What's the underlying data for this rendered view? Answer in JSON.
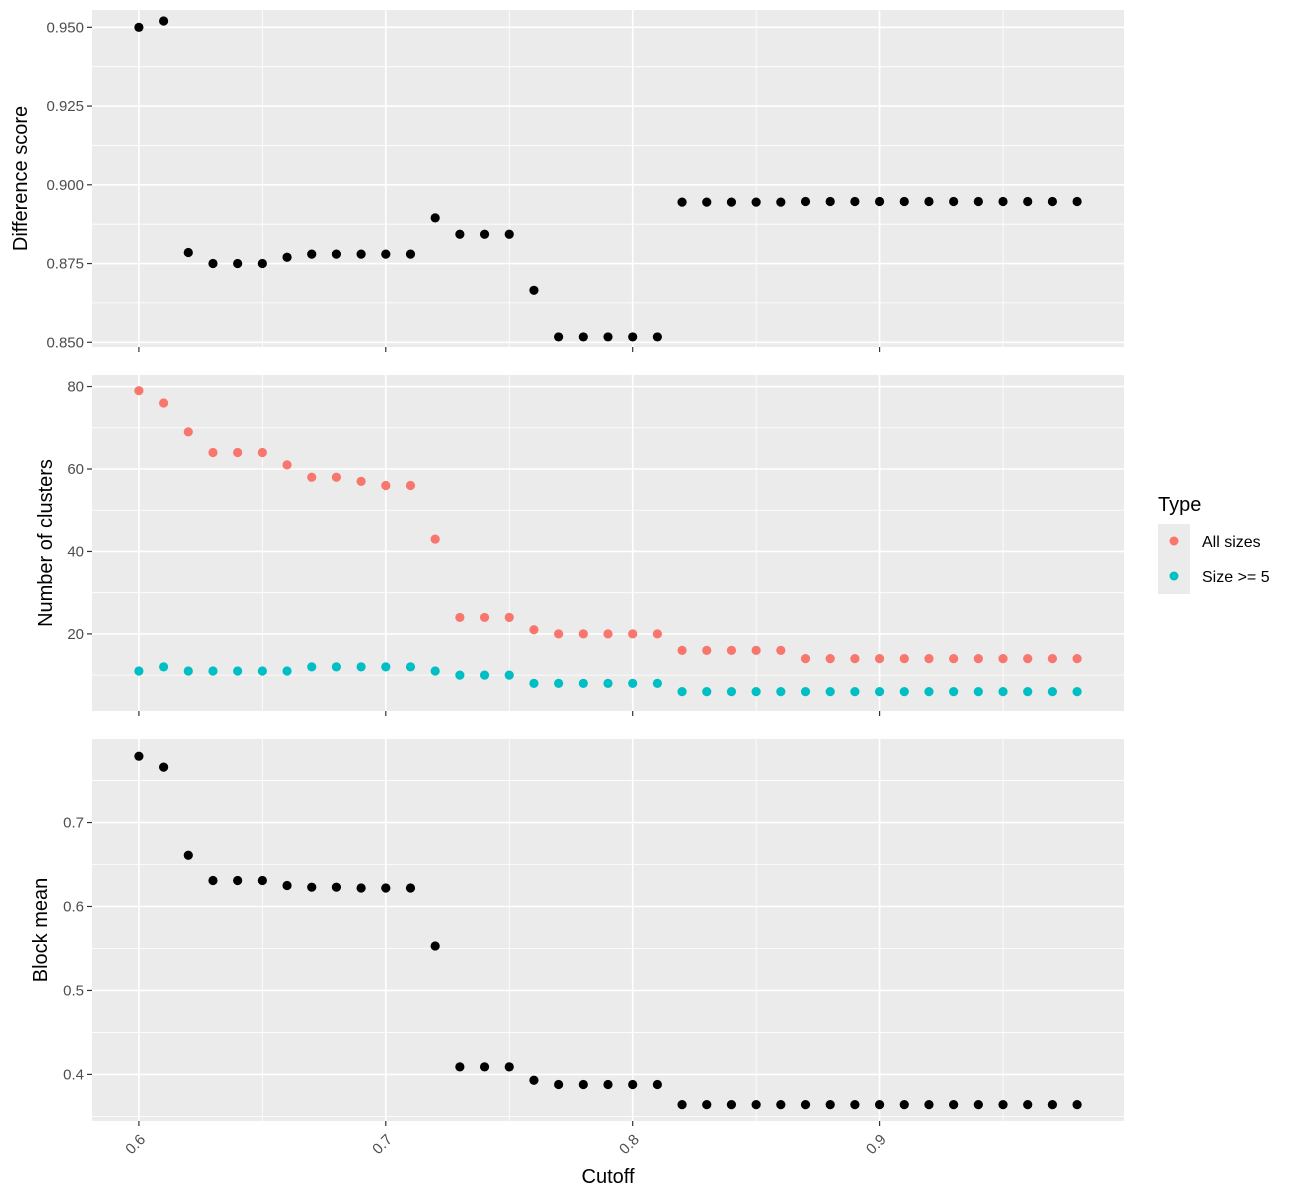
{
  "chart_data": [
    {
      "type": "scatter",
      "ylabel": "Difference score",
      "xlabel": "",
      "xlim": [
        0.581,
        0.999
      ],
      "ylim": [
        0.8485,
        0.9555
      ],
      "x_ticks": [
        0.6,
        0.7,
        0.8,
        0.9
      ],
      "x_tick_labels": [
        "",
        "",
        "",
        ""
      ],
      "y_ticks": [
        0.85,
        0.875,
        0.9,
        0.925,
        0.95
      ],
      "y_tick_labels": [
        "0.850",
        "0.875",
        "0.900",
        "0.925",
        "0.950"
      ],
      "x": [
        0.6,
        0.61,
        0.62,
        0.63,
        0.64,
        0.65,
        0.66,
        0.67,
        0.68,
        0.69,
        0.7,
        0.71,
        0.72,
        0.73,
        0.74,
        0.75,
        0.76,
        0.77,
        0.78,
        0.79,
        0.8,
        0.81,
        0.82,
        0.83,
        0.84,
        0.85,
        0.86,
        0.87,
        0.88,
        0.89,
        0.9,
        0.91,
        0.92,
        0.93,
        0.94,
        0.95,
        0.96,
        0.97,
        0.98
      ],
      "series": [
        {
          "color": "#000000",
          "values": [
            0.95,
            0.952,
            0.8785,
            0.875,
            0.875,
            0.875,
            0.877,
            0.878,
            0.878,
            0.878,
            0.878,
            0.878,
            0.8895,
            0.8843,
            0.8843,
            0.8843,
            0.8665,
            0.8517,
            0.8517,
            0.8517,
            0.8517,
            0.8517,
            0.8945,
            0.8945,
            0.8945,
            0.8945,
            0.8945,
            0.8947,
            0.8947,
            0.8947,
            0.8947,
            0.8947,
            0.8947,
            0.8947,
            0.8947,
            0.8947,
            0.8947,
            0.8947,
            0.8947
          ]
        }
      ],
      "grid": true
    },
    {
      "type": "scatter",
      "ylabel": "Number of clusters",
      "xlabel": "",
      "xlim": [
        0.581,
        0.999
      ],
      "ylim": [
        1.3,
        82.8
      ],
      "x_ticks": [
        0.6,
        0.7,
        0.8,
        0.9
      ],
      "x_tick_labels": [
        "",
        "",
        "",
        ""
      ],
      "y_ticks": [
        20,
        40,
        60,
        80
      ],
      "y_tick_labels": [
        "20",
        "40",
        "60",
        "80"
      ],
      "x": [
        0.6,
        0.61,
        0.62,
        0.63,
        0.64,
        0.65,
        0.66,
        0.67,
        0.68,
        0.69,
        0.7,
        0.71,
        0.72,
        0.73,
        0.74,
        0.75,
        0.76,
        0.77,
        0.78,
        0.79,
        0.8,
        0.81,
        0.82,
        0.83,
        0.84,
        0.85,
        0.86,
        0.87,
        0.88,
        0.89,
        0.9,
        0.91,
        0.92,
        0.93,
        0.94,
        0.95,
        0.96,
        0.97,
        0.98
      ],
      "series": [
        {
          "name": "All sizes",
          "color": "#F8766D",
          "values": [
            79,
            76,
            69,
            64,
            64,
            64,
            61,
            58,
            58,
            57,
            56,
            56,
            43,
            24,
            24,
            24,
            21,
            20,
            20,
            20,
            20,
            20,
            16,
            16,
            16,
            16,
            16,
            14,
            14,
            14,
            14,
            14,
            14,
            14,
            14,
            14,
            14,
            14,
            14
          ]
        },
        {
          "name": "Size >= 5",
          "color": "#00BFC4",
          "values": [
            11,
            12,
            11,
            11,
            11,
            11,
            11,
            12,
            12,
            12,
            12,
            12,
            11,
            10,
            10,
            10,
            8,
            8,
            8,
            8,
            8,
            8,
            6,
            6,
            6,
            6,
            6,
            6,
            6,
            6,
            6,
            6,
            6,
            6,
            6,
            6,
            6,
            6,
            6
          ]
        }
      ],
      "legend": {
        "title": "Type",
        "placement": "right"
      },
      "grid": true
    },
    {
      "type": "scatter",
      "ylabel": "Block mean",
      "xlabel": "Cutoff",
      "xlim": [
        0.581,
        0.999
      ],
      "ylim": [
        0.3445,
        0.7995
      ],
      "x_ticks": [
        0.6,
        0.7,
        0.8,
        0.9
      ],
      "x_tick_labels": [
        "0.6",
        "0.7",
        "0.8",
        "0.9"
      ],
      "y_ticks": [
        0.4,
        0.5,
        0.6,
        0.7
      ],
      "y_tick_labels": [
        "0.4",
        "0.5",
        "0.6",
        "0.7"
      ],
      "x": [
        0.6,
        0.61,
        0.62,
        0.63,
        0.64,
        0.65,
        0.66,
        0.67,
        0.68,
        0.69,
        0.7,
        0.71,
        0.72,
        0.73,
        0.74,
        0.75,
        0.76,
        0.77,
        0.78,
        0.79,
        0.8,
        0.81,
        0.82,
        0.83,
        0.84,
        0.85,
        0.86,
        0.87,
        0.88,
        0.89,
        0.9,
        0.91,
        0.92,
        0.93,
        0.94,
        0.95,
        0.96,
        0.97,
        0.98
      ],
      "series": [
        {
          "color": "#000000",
          "values": [
            0.779,
            0.766,
            0.661,
            0.631,
            0.631,
            0.631,
            0.625,
            0.623,
            0.623,
            0.622,
            0.622,
            0.622,
            0.553,
            0.409,
            0.409,
            0.409,
            0.393,
            0.388,
            0.388,
            0.388,
            0.388,
            0.388,
            0.364,
            0.364,
            0.364,
            0.364,
            0.364,
            0.364,
            0.364,
            0.364,
            0.364,
            0.364,
            0.364,
            0.364,
            0.364,
            0.364,
            0.364,
            0.364,
            0.364
          ]
        }
      ],
      "grid": true
    }
  ],
  "legend": {
    "title": "Type",
    "items": [
      {
        "label": "All sizes",
        "color": "#F8766D"
      },
      {
        "label": "Size >= 5",
        "color": "#00BFC4"
      }
    ]
  },
  "colors": {
    "panel_bg": "#EBEBEB",
    "grid": "#FFFFFF",
    "axis_text": "#4D4D4D",
    "tick": "#333333"
  }
}
